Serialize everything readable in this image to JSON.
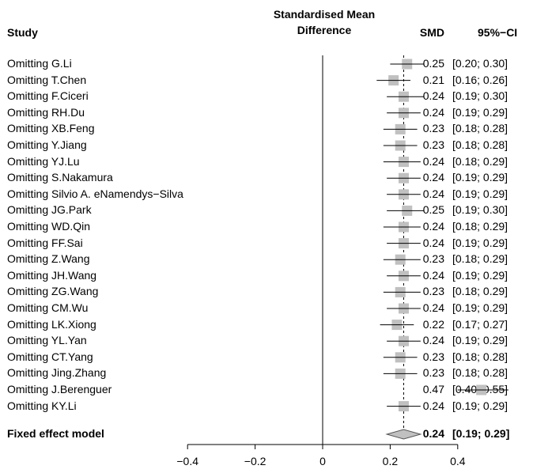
{
  "header": {
    "study": "Study",
    "effect_line1": "Standardised Mean",
    "effect_line2": "Difference",
    "smd": "SMD",
    "ci": "95%−CI"
  },
  "summary": {
    "label": "Fixed effect model",
    "smd": "0.24",
    "ci": "[0.19; 0.29]"
  },
  "chart_data": {
    "type": "forest",
    "xlim": [
      -0.4,
      0.4
    ],
    "xticks": [
      "−0.4",
      "−0.2",
      "0",
      "0.2",
      "0.4"
    ],
    "xtick_values": [
      -0.4,
      -0.2,
      0,
      0.2,
      0.4
    ],
    "reference_line": 0,
    "pooled_line": 0.24,
    "colors": {
      "box": "#c0c0c0",
      "line": "#000000",
      "diamond": "#c0c0c0"
    },
    "studies": [
      {
        "label": "Omitting G.Li",
        "smd": 0.25,
        "lo": 0.2,
        "hi": 0.3,
        "smd_text": "0.25",
        "ci_text": "[0.20; 0.30]"
      },
      {
        "label": "Omitting T.Chen",
        "smd": 0.21,
        "lo": 0.16,
        "hi": 0.26,
        "smd_text": "0.21",
        "ci_text": "[0.16; 0.26]"
      },
      {
        "label": "Omitting F.Ciceri",
        "smd": 0.24,
        "lo": 0.19,
        "hi": 0.3,
        "smd_text": "0.24",
        "ci_text": "[0.19; 0.30]"
      },
      {
        "label": "Omitting RH.Du",
        "smd": 0.24,
        "lo": 0.19,
        "hi": 0.29,
        "smd_text": "0.24",
        "ci_text": "[0.19; 0.29]"
      },
      {
        "label": "Omitting XB.Feng",
        "smd": 0.23,
        "lo": 0.18,
        "hi": 0.28,
        "smd_text": "0.23",
        "ci_text": "[0.18; 0.28]"
      },
      {
        "label": "Omitting Y.Jiang",
        "smd": 0.23,
        "lo": 0.18,
        "hi": 0.28,
        "smd_text": "0.23",
        "ci_text": "[0.18; 0.28]"
      },
      {
        "label": "Omitting YJ.Lu",
        "smd": 0.24,
        "lo": 0.18,
        "hi": 0.29,
        "smd_text": "0.24",
        "ci_text": "[0.18; 0.29]"
      },
      {
        "label": "Omitting S.Nakamura",
        "smd": 0.24,
        "lo": 0.19,
        "hi": 0.29,
        "smd_text": "0.24",
        "ci_text": "[0.19; 0.29]"
      },
      {
        "label": "Omitting Silvio A. eNamendys−Silva",
        "smd": 0.24,
        "lo": 0.19,
        "hi": 0.29,
        "smd_text": "0.24",
        "ci_text": "[0.19; 0.29]"
      },
      {
        "label": "Omitting JG.Park",
        "smd": 0.25,
        "lo": 0.19,
        "hi": 0.3,
        "smd_text": "0.25",
        "ci_text": "[0.19; 0.30]"
      },
      {
        "label": "Omitting WD.Qin",
        "smd": 0.24,
        "lo": 0.18,
        "hi": 0.29,
        "smd_text": "0.24",
        "ci_text": "[0.18; 0.29]"
      },
      {
        "label": "Omitting FF.Sai",
        "smd": 0.24,
        "lo": 0.19,
        "hi": 0.29,
        "smd_text": "0.24",
        "ci_text": "[0.19; 0.29]"
      },
      {
        "label": "Omitting Z.Wang",
        "smd": 0.23,
        "lo": 0.18,
        "hi": 0.29,
        "smd_text": "0.23",
        "ci_text": "[0.18; 0.29]"
      },
      {
        "label": "Omitting JH.Wang",
        "smd": 0.24,
        "lo": 0.19,
        "hi": 0.29,
        "smd_text": "0.24",
        "ci_text": "[0.19; 0.29]"
      },
      {
        "label": "Omitting ZG.Wang",
        "smd": 0.23,
        "lo": 0.18,
        "hi": 0.29,
        "smd_text": "0.23",
        "ci_text": "[0.18; 0.29]"
      },
      {
        "label": "Omitting CM.Wu",
        "smd": 0.24,
        "lo": 0.19,
        "hi": 0.29,
        "smd_text": "0.24",
        "ci_text": "[0.19; 0.29]"
      },
      {
        "label": "Omitting LK.Xiong",
        "smd": 0.22,
        "lo": 0.17,
        "hi": 0.27,
        "smd_text": "0.22",
        "ci_text": "[0.17; 0.27]"
      },
      {
        "label": "Omitting YL.Yan",
        "smd": 0.24,
        "lo": 0.19,
        "hi": 0.29,
        "smd_text": "0.24",
        "ci_text": "[0.19; 0.29]"
      },
      {
        "label": "Omitting CT.Yang",
        "smd": 0.23,
        "lo": 0.18,
        "hi": 0.28,
        "smd_text": "0.23",
        "ci_text": "[0.18; 0.28]"
      },
      {
        "label": "Omitting Jing.Zhang",
        "smd": 0.23,
        "lo": 0.18,
        "hi": 0.28,
        "smd_text": "0.23",
        "ci_text": "[0.18; 0.28]"
      },
      {
        "label": "Omitting J.Berenguer",
        "smd": 0.47,
        "lo": 0.4,
        "hi": 0.55,
        "smd_text": "0.47",
        "ci_text": "[0.40; 0.55]"
      },
      {
        "label": "Omitting KY.Li",
        "smd": 0.24,
        "lo": 0.19,
        "hi": 0.29,
        "smd_text": "0.24",
        "ci_text": "[0.19; 0.29]"
      }
    ]
  }
}
